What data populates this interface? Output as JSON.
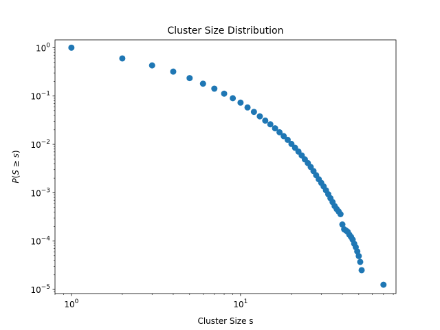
{
  "chart_data": {
    "type": "scatter",
    "title": "Cluster Size Distribution",
    "xlabel": "Cluster Size s",
    "ylabel_parts": [
      "P",
      "(",
      "S",
      " ≥ ",
      "s",
      ")"
    ],
    "xscale": "log",
    "yscale": "log",
    "xlim": [
      0.8,
      83
    ],
    "ylim": [
      8.2e-06,
      1.45
    ],
    "grid": false,
    "marker_color": "#1f77b4",
    "x_ticks": [
      {
        "value": 1,
        "base": "10",
        "exp": "0"
      },
      {
        "value": 10,
        "base": "10",
        "exp": "1"
      }
    ],
    "y_ticks": [
      {
        "value": 1e-05,
        "base": "10",
        "exp": "−5"
      },
      {
        "value": 0.0001,
        "base": "10",
        "exp": "−4"
      },
      {
        "value": 0.001,
        "base": "10",
        "exp": "−3"
      },
      {
        "value": 0.01,
        "base": "10",
        "exp": "−2"
      },
      {
        "value": 0.1,
        "base": "10",
        "exp": "−1"
      },
      {
        "value": 1,
        "base": "10",
        "exp": "0"
      }
    ],
    "x": [
      1,
      2,
      3,
      4,
      5,
      6,
      7,
      8,
      9,
      10,
      11,
      12,
      13,
      14,
      15,
      16,
      17,
      18,
      19,
      20,
      21,
      22,
      23,
      24,
      25,
      26,
      27,
      28,
      29,
      30,
      31,
      32,
      33,
      34,
      35,
      36,
      37,
      38,
      39,
      40,
      41,
      42,
      43,
      44,
      45,
      46,
      47,
      48,
      49,
      50,
      51,
      52,
      70
    ],
    "y": [
      1.0,
      0.6,
      0.43,
      0.32,
      0.235,
      0.18,
      0.142,
      0.112,
      0.09,
      0.073,
      0.058,
      0.047,
      0.038,
      0.031,
      0.026,
      0.0215,
      0.0178,
      0.0148,
      0.0124,
      0.0102,
      0.0085,
      0.0071,
      0.0059,
      0.0049,
      0.0041,
      0.0034,
      0.0028,
      0.0023,
      0.0019,
      0.0016,
      0.00135,
      0.00112,
      0.00093,
      0.00077,
      0.00064,
      0.00053,
      0.00046,
      0.00041,
      0.00036,
      0.00022,
      0.000175,
      0.000165,
      0.000155,
      0.000135,
      0.000122,
      0.000107,
      8.8e-05,
      7.5e-05,
      6.1e-05,
      4.9e-05,
      3.7e-05,
      2.5e-05,
      1.25e-05
    ]
  }
}
